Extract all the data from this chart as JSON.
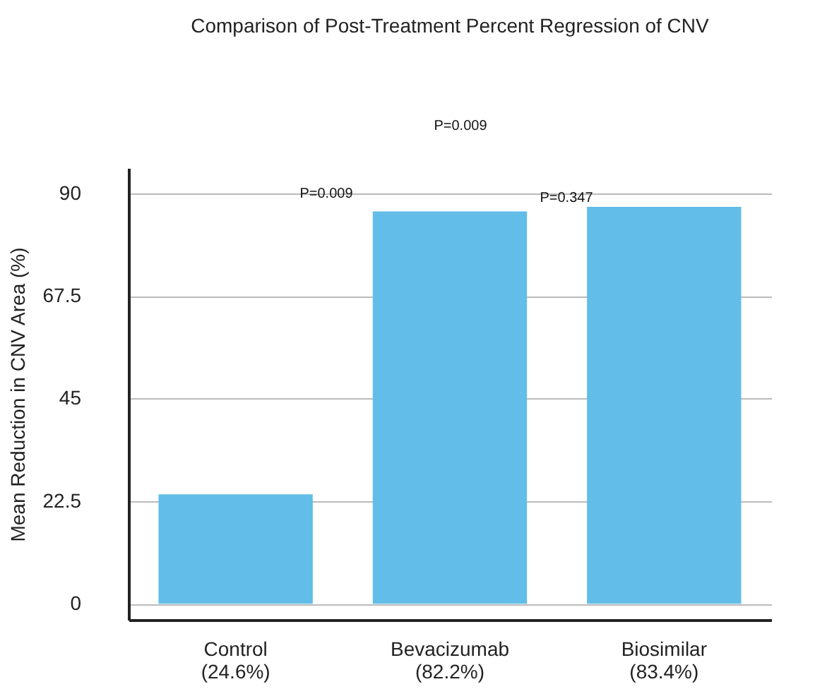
{
  "chart_data": {
    "type": "bar",
    "title": "Comparison of Post-Treatment Percent Regression of CNV",
    "ylabel": "Mean Reduction in CNV Area (%)",
    "categories": [
      "Control\n(24.6%)",
      "Bevacizumab\n(82.2%)",
      "Biosimilar\n(83.4%)"
    ],
    "values": [
      24,
      86,
      87
    ],
    "color": "#62bde8",
    "ylim": [
      -3.5,
      95.5
    ],
    "yticks": [
      0,
      22.5,
      45,
      67.5,
      90
    ],
    "grid": "y",
    "annotations": [
      "P=0.009",
      "P=0.009",
      "P=0.347"
    ]
  }
}
